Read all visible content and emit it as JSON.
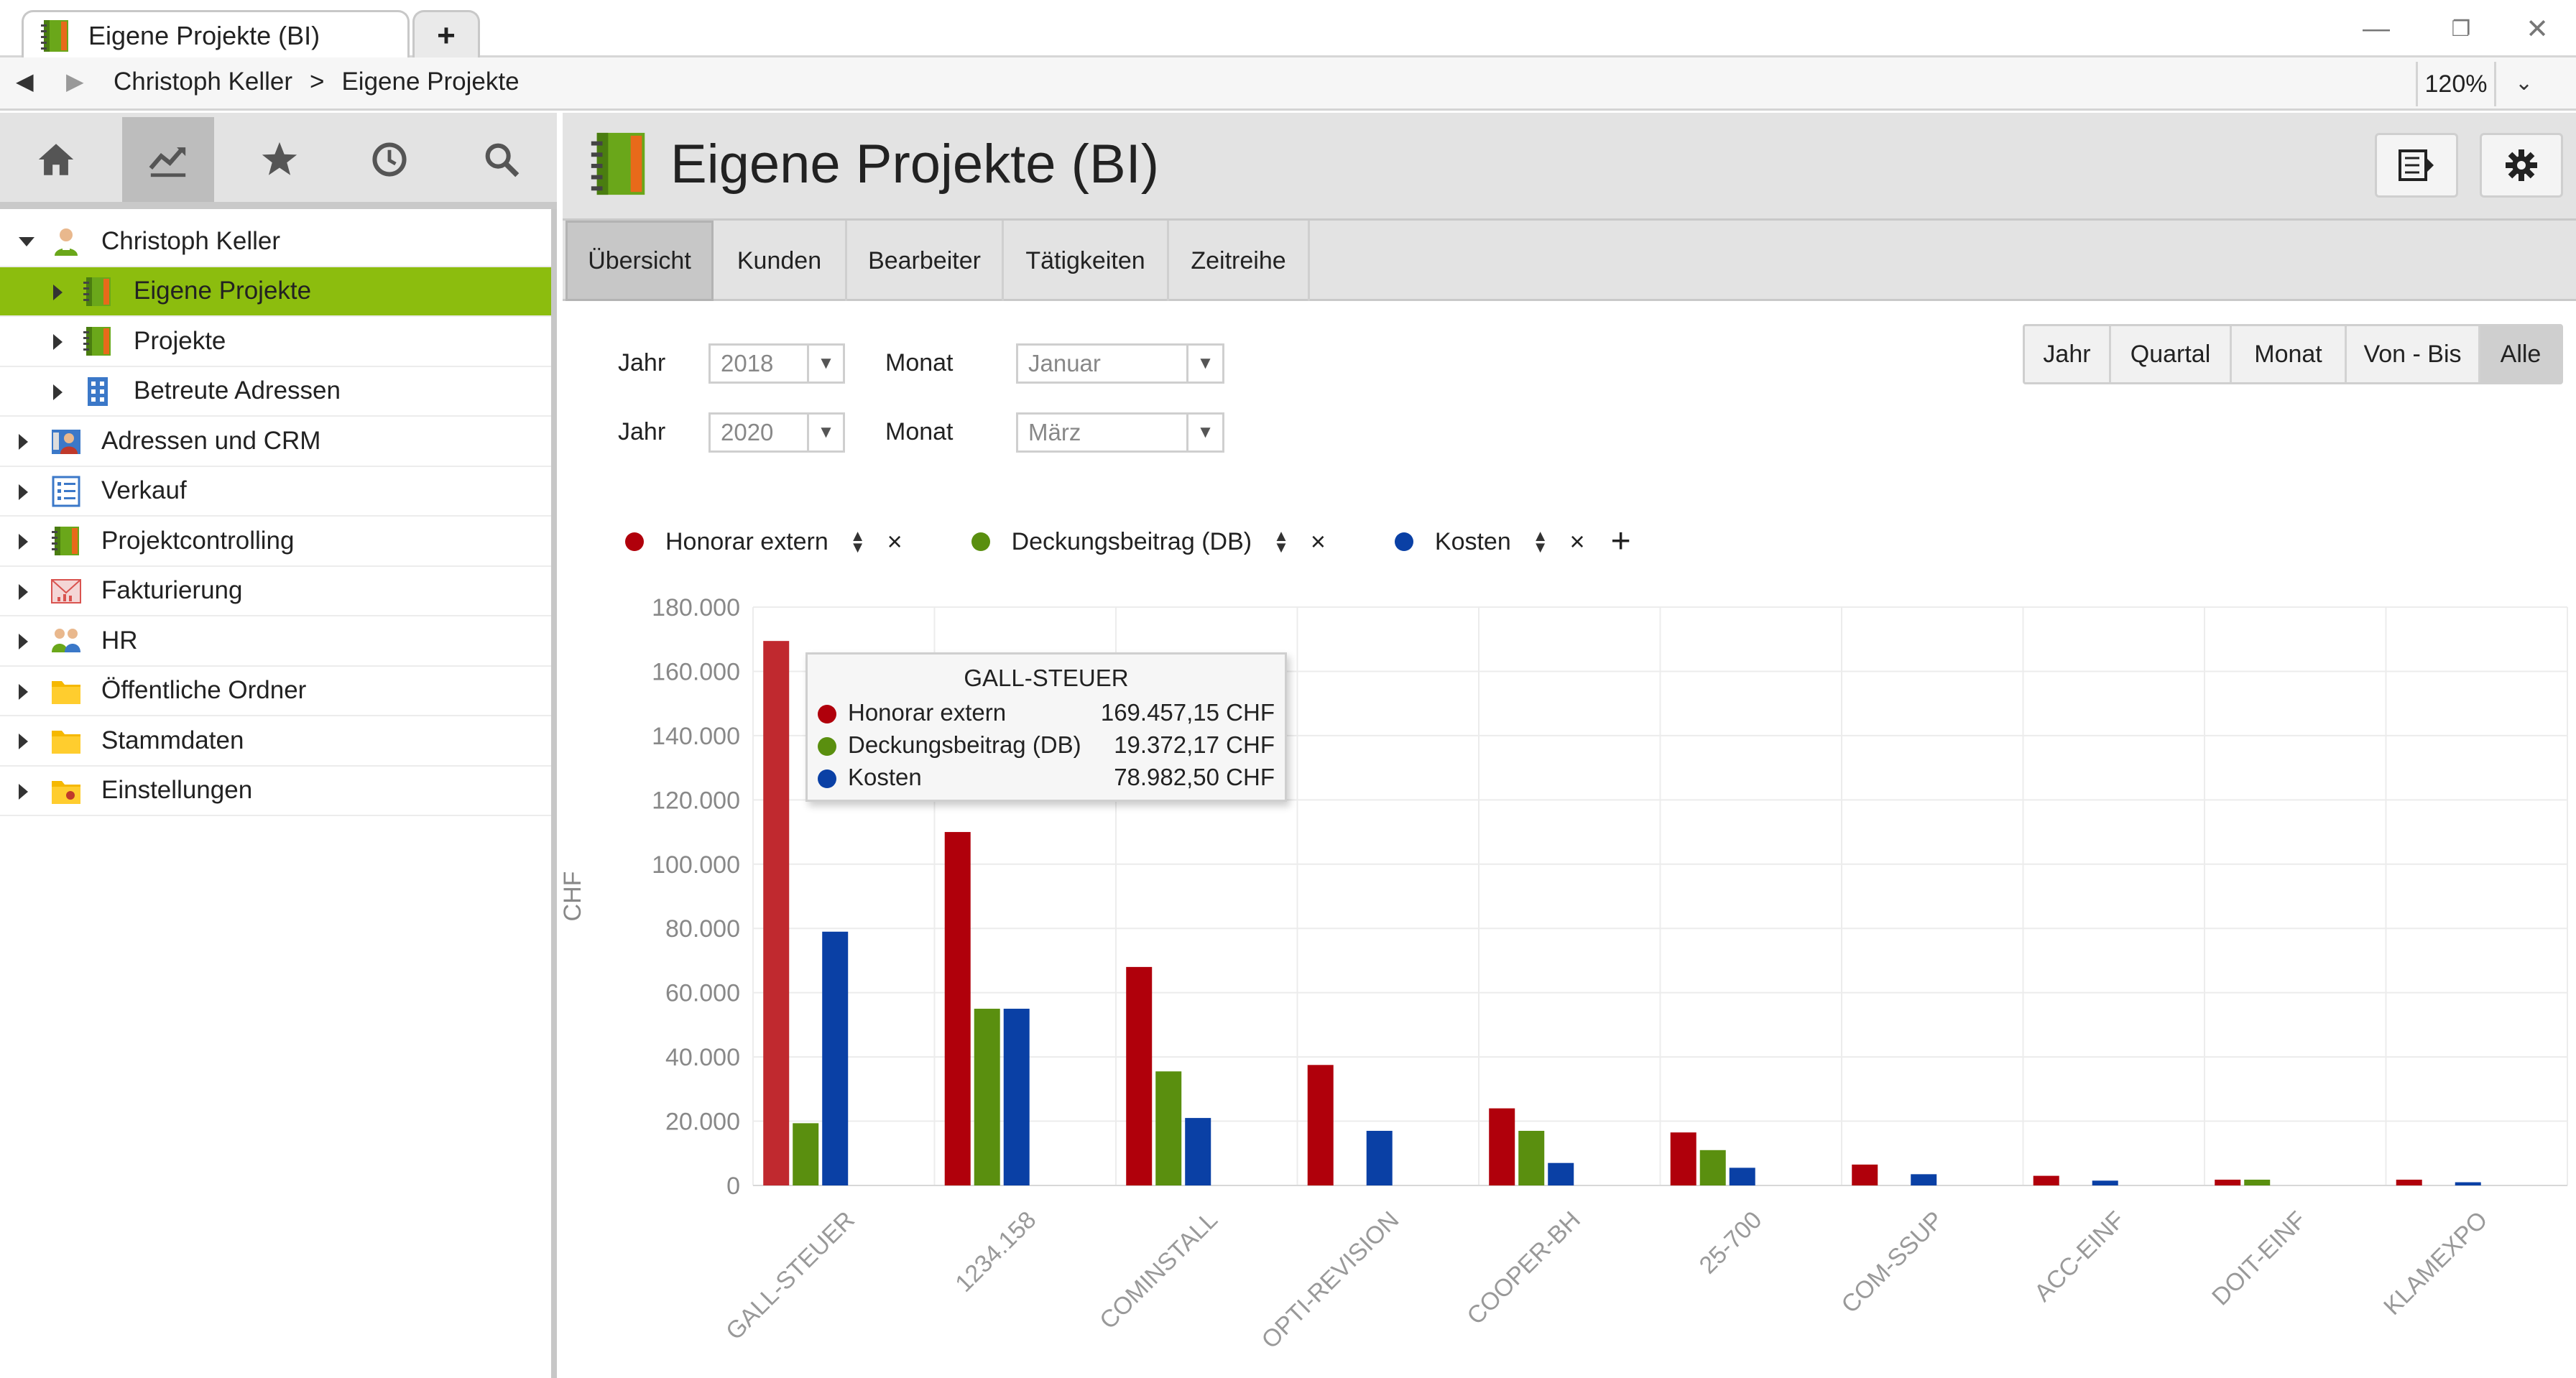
{
  "window": {
    "tab_title": "Eigene Projekte (BI)",
    "new_tab_label": "+",
    "minimize_label": "—",
    "restore_label": "❐",
    "close_label": "✕"
  },
  "address_bar": {
    "back_label": "◀",
    "forward_label": "▶",
    "crumbs": [
      "Christoph Keller",
      ">",
      "Eigene Projekte"
    ],
    "zoom": "120%",
    "zoom_dropdown": "⌄"
  },
  "sidebar": {
    "tools": [
      "home-icon",
      "chart-icon",
      "star-icon",
      "clock-icon",
      "search-icon"
    ],
    "tree": [
      {
        "label": "Christoph Keller",
        "icon": "user-icon",
        "level": 0,
        "expanded": true
      },
      {
        "label": "Eigene Projekte",
        "icon": "notebook-icon",
        "level": 1,
        "selected": true
      },
      {
        "label": "Projekte",
        "icon": "notebook-icon",
        "level": 1
      },
      {
        "label": "Betreute Adressen",
        "icon": "building-icon",
        "level": 1
      },
      {
        "label": "Adressen und CRM",
        "icon": "contacts-icon",
        "level": 0
      },
      {
        "label": "Verkauf",
        "icon": "list-icon",
        "level": 0
      },
      {
        "label": "Projektcontrolling",
        "icon": "notebook-icon",
        "level": 0
      },
      {
        "label": "Fakturierung",
        "icon": "invoice-icon",
        "level": 0
      },
      {
        "label": "HR",
        "icon": "people-icon",
        "level": 0
      },
      {
        "label": "Öffentliche Ordner",
        "icon": "folder-icon",
        "level": 0
      },
      {
        "label": "Stammdaten",
        "icon": "folder-icon",
        "level": 0
      },
      {
        "label": "Einstellungen",
        "icon": "settings-folder-icon",
        "level": 0
      }
    ]
  },
  "header": {
    "title": "Eigene Projekte (BI)",
    "icon": "notebook-icon",
    "buttons": [
      "panel-toggle-icon",
      "gear-icon"
    ]
  },
  "tabs": [
    "Übersicht",
    "Kunden",
    "Bearbeiter",
    "Tätigkeiten",
    "Zeitreihe"
  ],
  "active_tab": 0,
  "filters": [
    {
      "year_label": "Jahr",
      "year": "2018",
      "month_label": "Monat",
      "month": "Januar"
    },
    {
      "year_label": "Jahr",
      "year": "2020",
      "month_label": "Monat",
      "month": "März"
    }
  ],
  "period_buttons": [
    "Jahr",
    "Quartal",
    "Monat",
    "Von - Bis",
    "Alle"
  ],
  "active_period": 4,
  "legend": {
    "items": [
      {
        "name": "Honorar extern",
        "color": "#b0000b"
      },
      {
        "name": "Deckungsbeitrag (DB)",
        "color": "#5a8f0f"
      },
      {
        "name": "Kosten",
        "color": "#0a40a5"
      }
    ],
    "sort_up": "▲",
    "sort_down": "▼",
    "remove_label": "×",
    "add_label": "+"
  },
  "tooltip": {
    "title": "GALL-STEUER",
    "rows": [
      {
        "name": "Honorar extern",
        "value": "169.457,15 CHF",
        "color": "#b0000b"
      },
      {
        "name": "Deckungsbeitrag (DB)",
        "value": "19.372,17 CHF",
        "color": "#5a8f0f"
      },
      {
        "name": "Kosten",
        "value": "78.982,50 CHF",
        "color": "#0a40a5"
      }
    ]
  },
  "chart_data": {
    "type": "bar",
    "ylabel": "CHF",
    "ylim": [
      0,
      180000
    ],
    "ytick_step": 20000,
    "ytick_labels": [
      "0",
      "20.000",
      "40.000",
      "60.000",
      "80.000",
      "100.000",
      "120.000",
      "140.000",
      "160.000",
      "180.000"
    ],
    "grid": true,
    "legend_position": "top-left",
    "categories": [
      "GALL-STEUER",
      "1234.158",
      "COMINSTALL",
      "OPTI-REVISION",
      "COOPER-BH",
      "25-700",
      "COM-SSUP",
      "ACC-EINF",
      "DOIT-EINF",
      "KLAMEXPO"
    ],
    "series": [
      {
        "name": "Honorar extern",
        "color": "#b0000b",
        "hover_color": "#c0292f",
        "values": [
          169457.15,
          110000,
          68000,
          37500,
          24000,
          16500,
          6500,
          3000,
          1800,
          1800
        ]
      },
      {
        "name": "Deckungsbeitrag (DB)",
        "color": "#5a8f0f",
        "values": [
          19372.17,
          55000,
          35500,
          0,
          17000,
          11000,
          0,
          0,
          1800,
          0
        ]
      },
      {
        "name": "Kosten",
        "color": "#0a40a5",
        "values": [
          78982.5,
          55000,
          21000,
          17000,
          7000,
          5500,
          3500,
          1500,
          0,
          1000
        ]
      }
    ],
    "highlighted_category": 0
  }
}
